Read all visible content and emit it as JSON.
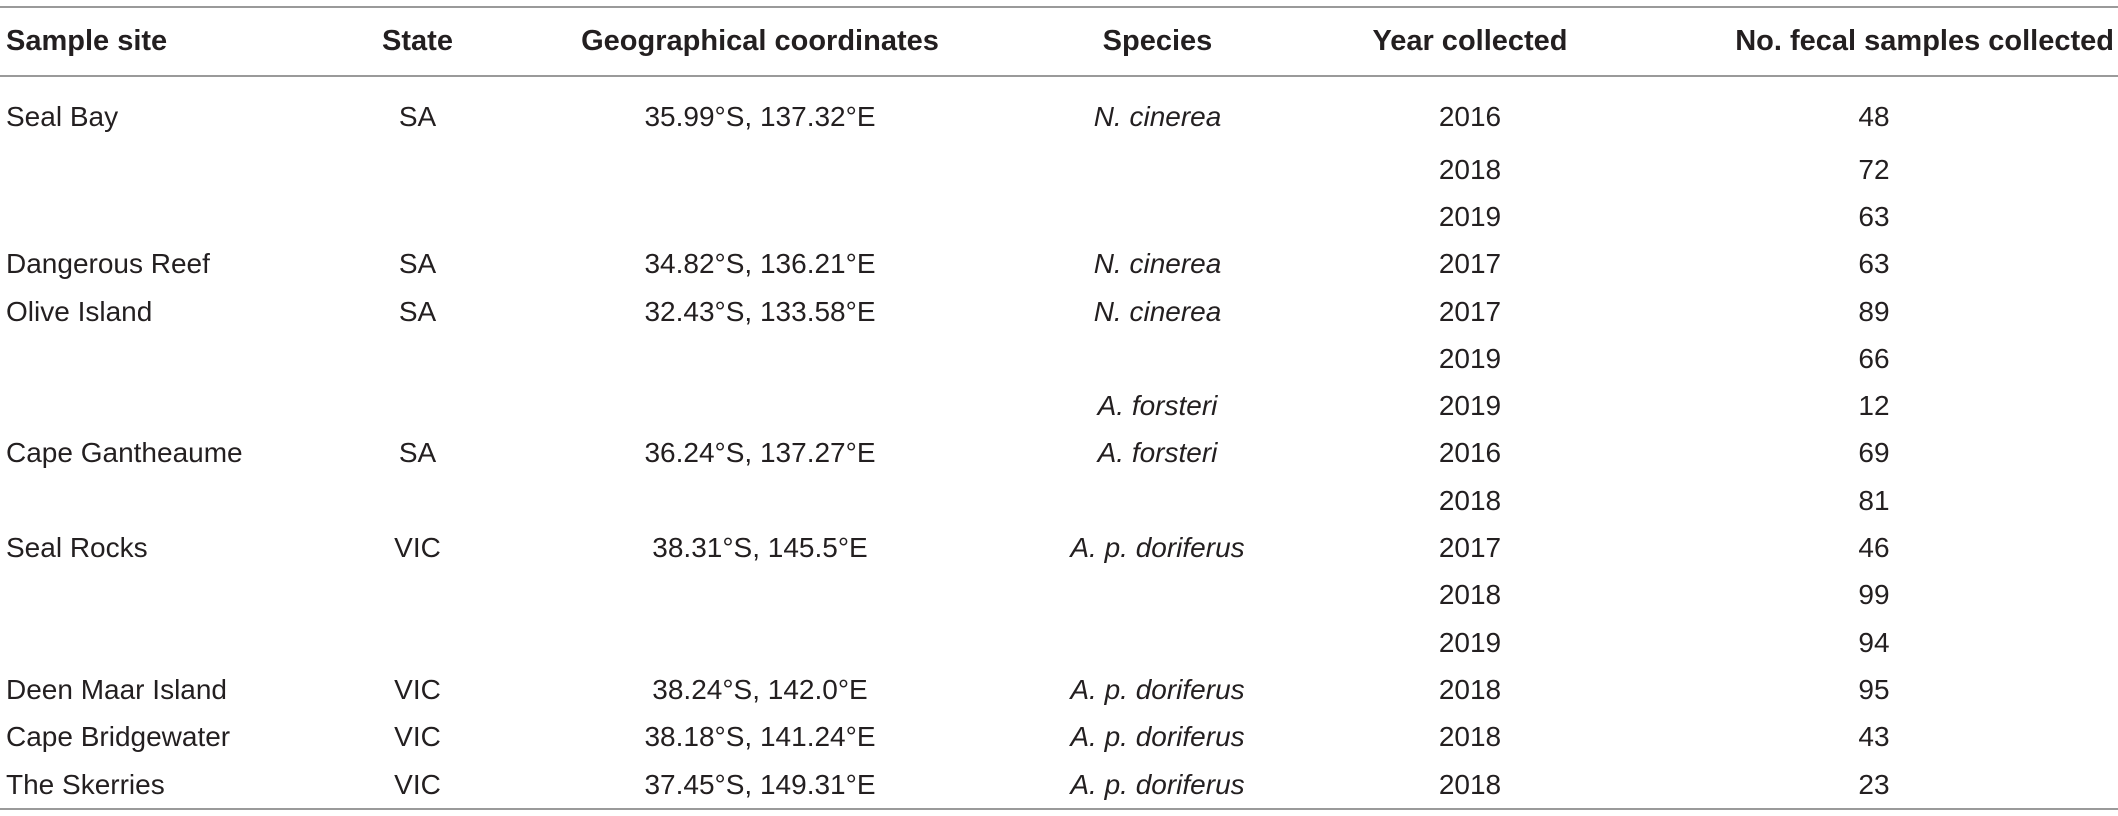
{
  "table": {
    "headers": [
      "Sample site",
      "State",
      "Geographical coordinates",
      "Species",
      "Year collected",
      "No. fecal samples collected"
    ],
    "rows": [
      [
        "Seal Bay",
        "SA",
        "35.99°S, 137.32°E",
        "N. cinerea",
        "2016",
        "48"
      ],
      [
        "",
        "",
        "",
        "",
        "2018",
        "72"
      ],
      [
        "",
        "",
        "",
        "",
        "2019",
        "63"
      ],
      [
        "Dangerous Reef",
        "SA",
        "34.82°S, 136.21°E",
        "N. cinerea",
        "2017",
        "63"
      ],
      [
        "Olive Island",
        "SA",
        "32.43°S, 133.58°E",
        "N. cinerea",
        "2017",
        "89"
      ],
      [
        "",
        "",
        "",
        "",
        "2019",
        "66"
      ],
      [
        "",
        "",
        "",
        "A. forsteri",
        "2019",
        "12"
      ],
      [
        "Cape Gantheaume",
        "SA",
        "36.24°S, 137.27°E",
        "A. forsteri",
        "2016",
        "69"
      ],
      [
        "",
        "",
        "",
        "",
        "2018",
        "81"
      ],
      [
        "Seal Rocks",
        "VIC",
        "38.31°S, 145.5°E",
        "A. p. doriferus",
        "2017",
        "46"
      ],
      [
        "",
        "",
        "",
        "",
        "2018",
        "99"
      ],
      [
        "",
        "",
        "",
        "",
        "2019",
        "94"
      ],
      [
        "Deen Maar Island",
        "VIC",
        "38.24°S, 142.0°E",
        "A. p. doriferus",
        "2018",
        "95"
      ],
      [
        "Cape Bridgewater",
        "VIC",
        "38.18°S, 141.24°E",
        "A. p. doriferus",
        "2018",
        "43"
      ],
      [
        "The Skerries",
        "VIC",
        "37.45°S, 149.31°E",
        "A. p. doriferus",
        "2018",
        "23"
      ]
    ]
  }
}
